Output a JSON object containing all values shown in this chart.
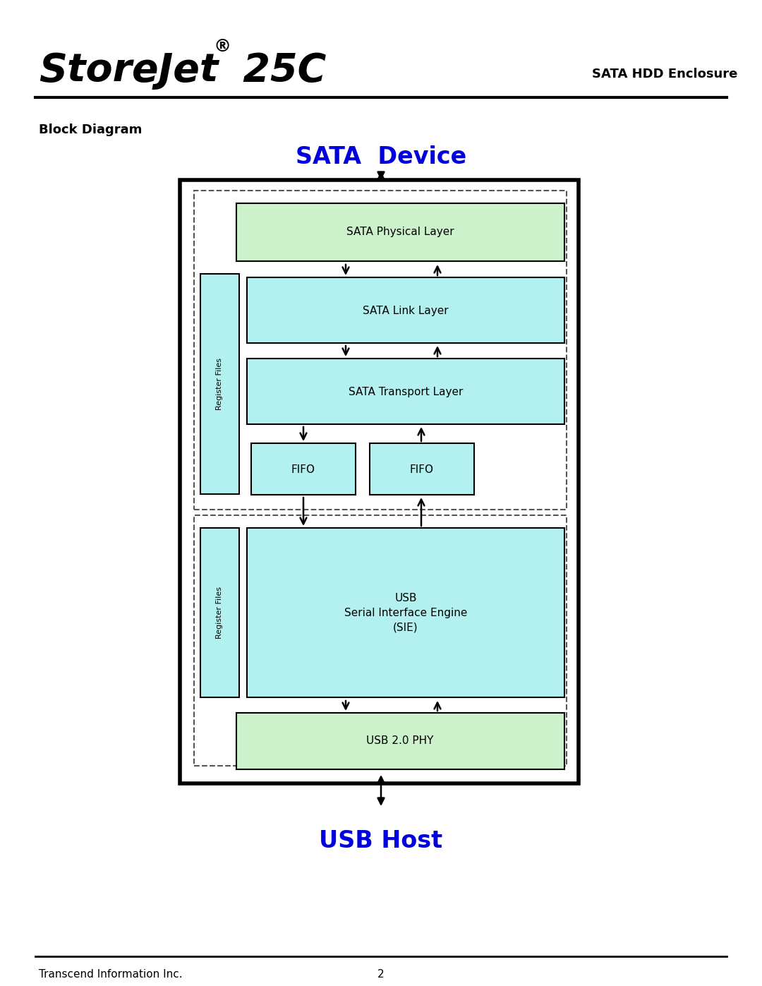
{
  "title_storejet": "StoreJet",
  "title_reg": "®",
  "title_25c": " 25C",
  "title_right": "SATA HDD Enclosure",
  "section_label": "Block Diagram",
  "sata_device_label": "SATA  Device",
  "usb_host_label": "USB Host",
  "footer_left": "Transcend Information Inc.",
  "footer_center": "2",
  "bg_color": "#ffffff",
  "green_light": "#ccf2cc",
  "cyan_light": "#b3f0f0",
  "blue_label": "#0000dd",
  "fig_w": 10.8,
  "fig_h": 13.97,
  "dpi": 100
}
